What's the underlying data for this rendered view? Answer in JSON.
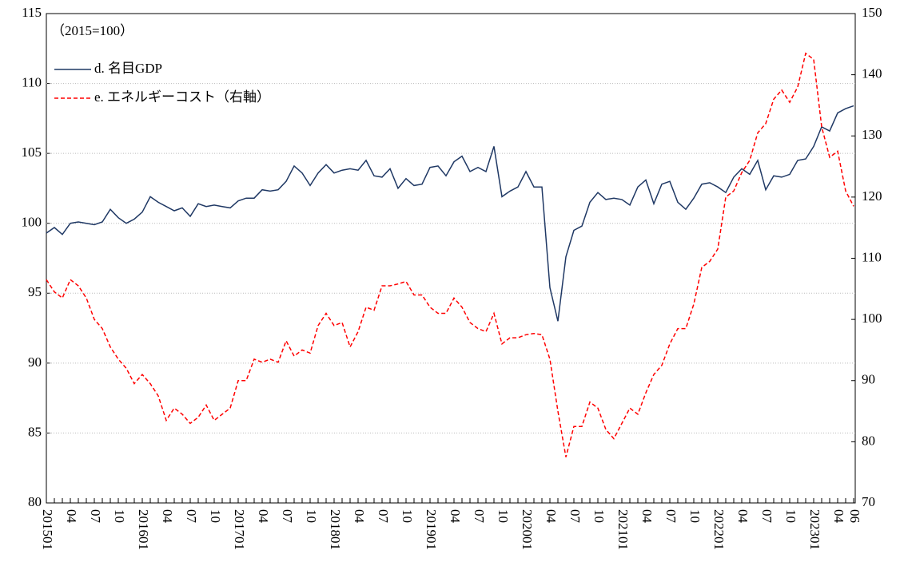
{
  "chart_data": {
    "type": "line",
    "annotation": "（2015=100）",
    "categories": [
      "201501",
      null,
      null,
      "04",
      null,
      null,
      "07",
      null,
      null,
      "10",
      null,
      null,
      "201601",
      null,
      null,
      "04",
      null,
      null,
      "07",
      null,
      null,
      "10",
      null,
      null,
      "201701",
      null,
      null,
      "04",
      null,
      null,
      "07",
      null,
      null,
      "10",
      null,
      null,
      "201801",
      null,
      null,
      "04",
      null,
      null,
      "07",
      null,
      null,
      "10",
      null,
      null,
      "201901",
      null,
      null,
      "04",
      null,
      null,
      "07",
      null,
      null,
      "10",
      null,
      null,
      "202001",
      null,
      null,
      "04",
      null,
      null,
      "07",
      null,
      null,
      "10",
      null,
      null,
      "202101",
      null,
      null,
      "04",
      null,
      null,
      "07",
      null,
      null,
      "10",
      null,
      null,
      "202201",
      null,
      null,
      "04",
      null,
      null,
      "07",
      null,
      null,
      "10",
      null,
      null,
      "202301",
      null,
      null,
      "04",
      null,
      "06"
    ],
    "series": [
      {
        "name": "d. 名目GDP",
        "color": "#1f3864",
        "axis": "y",
        "dash": false,
        "values": [
          99.3,
          99.7,
          99.2,
          100.0,
          100.1,
          100.0,
          99.9,
          100.1,
          101.0,
          100.4,
          100.0,
          100.3,
          100.8,
          101.9,
          101.5,
          101.2,
          100.9,
          101.1,
          100.5,
          101.4,
          101.2,
          101.3,
          101.2,
          101.1,
          101.6,
          101.8,
          101.8,
          102.4,
          102.3,
          102.4,
          103.0,
          104.1,
          103.6,
          102.7,
          103.6,
          104.2,
          103.6,
          103.8,
          103.9,
          103.8,
          104.5,
          103.4,
          103.3,
          103.9,
          102.5,
          103.2,
          102.7,
          102.8,
          104.0,
          104.1,
          103.4,
          104.4,
          104.8,
          103.7,
          104.0,
          103.7,
          105.5,
          101.9,
          102.3,
          102.6,
          103.7,
          102.6,
          102.6,
          95.4,
          93.0,
          97.6,
          99.5,
          99.8,
          101.5,
          102.2,
          101.7,
          101.8,
          101.7,
          101.3,
          102.6,
          103.1,
          101.4,
          102.8,
          103.0,
          101.5,
          101.0,
          101.8,
          102.8,
          102.9,
          102.6,
          102.2,
          103.3,
          103.9,
          103.5,
          104.5,
          102.4,
          103.4,
          103.3,
          103.5,
          104.5,
          104.6,
          105.5,
          106.9,
          106.6,
          107.9,
          108.2,
          108.4
        ]
      },
      {
        "name": "e. エネルギーコスト（右軸）",
        "color": "#ff0000",
        "axis": "y2",
        "dash": true,
        "values": [
          106.5,
          104.5,
          103.5,
          106.5,
          105.5,
          103.5,
          100,
          98.5,
          95.5,
          93.5,
          92,
          89.5,
          91,
          89.5,
          87.5,
          83.5,
          85.5,
          84.5,
          83,
          84,
          86,
          83.5,
          84.5,
          85.5,
          90,
          90,
          93.5,
          93,
          93.5,
          93,
          96.5,
          94,
          95,
          94.5,
          99,
          101,
          99,
          99.5,
          95.5,
          98,
          102,
          101.5,
          105.5,
          105.5,
          105.8,
          106.2,
          104,
          104,
          102,
          101,
          101,
          103.5,
          102,
          99.5,
          98.5,
          98,
          101,
          96,
          97,
          97,
          97.5,
          97.7,
          97.5,
          93.5,
          85,
          77.5,
          82.5,
          82.5,
          86.5,
          85.5,
          82,
          80.5,
          83,
          85.5,
          84.5,
          88,
          91,
          92.5,
          96,
          98.5,
          98.5,
          102.5,
          108.5,
          109.5,
          111.5,
          120,
          121,
          124,
          126,
          130.5,
          132,
          136,
          137.5,
          135.5,
          138,
          143.5,
          142.5,
          131.5,
          126.5,
          127.5,
          121,
          118.5
        ]
      }
    ],
    "ylim": [
      80,
      115
    ],
    "yticks": [
      80,
      85,
      90,
      95,
      100,
      105,
      110,
      115
    ],
    "y2lim": [
      70,
      150
    ],
    "y2ticks": [
      70,
      80,
      90,
      100,
      110,
      120,
      130,
      140,
      150
    ],
    "grid": true,
    "legend": "upper left"
  }
}
